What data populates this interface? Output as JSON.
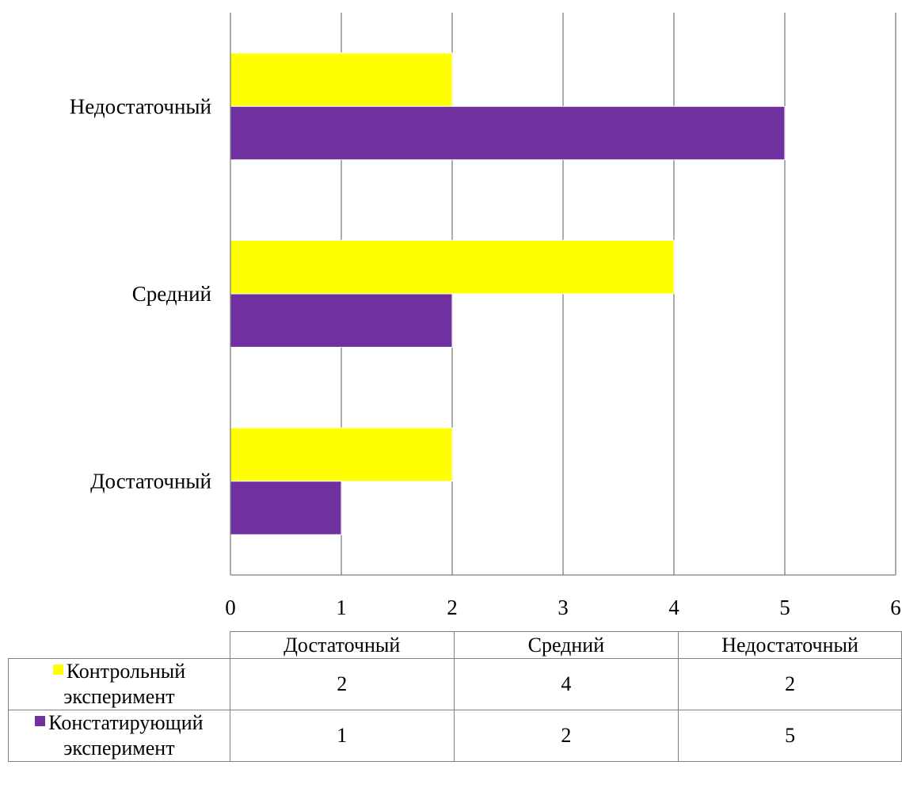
{
  "chart_data": {
    "type": "bar",
    "orientation": "horizontal",
    "categories": [
      "Достаточный",
      "Средний",
      "Недостаточный"
    ],
    "series": [
      {
        "name": "Контрольный эксперимент",
        "values": [
          2,
          4,
          2
        ],
        "color": "#FFFF00"
      },
      {
        "name": "Констатирующий эксперимент",
        "values": [
          1,
          2,
          5
        ],
        "color": "#7030A0"
      }
    ],
    "xlim": [
      0,
      6
    ],
    "xticks": [
      0,
      1,
      2,
      3,
      4,
      5,
      6
    ],
    "grid": true,
    "legend": "data-table-below",
    "title": "",
    "xlabel": "",
    "ylabel": ""
  },
  "table": {
    "header": [
      "Достаточный",
      "Средний",
      "Недостаточный"
    ],
    "rows": [
      {
        "label_line1": "Контрольный",
        "label_line2": "эксперимент",
        "values": [
          "2",
          "4",
          "2"
        ]
      },
      {
        "label_line1": "Констатирующий",
        "label_line2": "эксперимент",
        "values": [
          "1",
          "2",
          "5"
        ]
      }
    ]
  }
}
